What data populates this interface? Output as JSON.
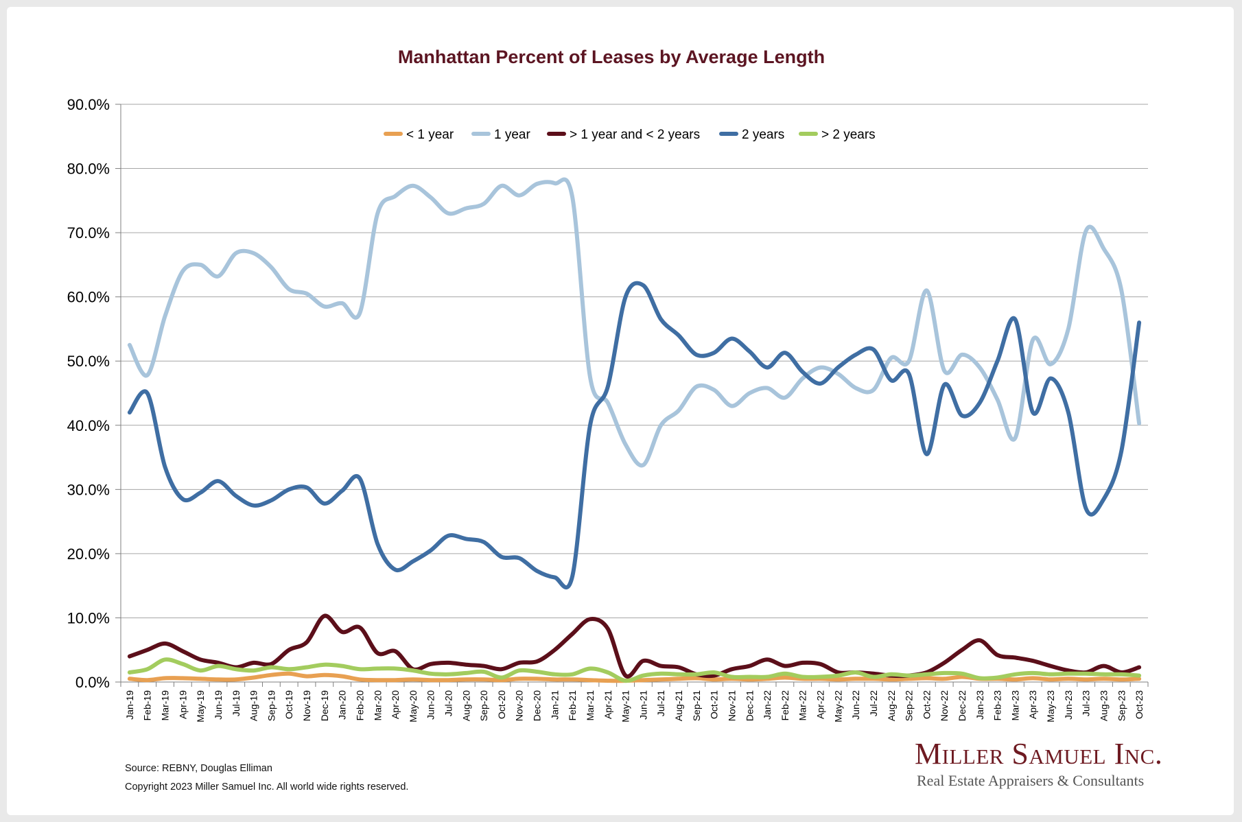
{
  "chart_data": {
    "type": "line",
    "title": "Manhattan Percent of Leases by Average Length",
    "xlabel": "",
    "ylabel": "",
    "ylim": [
      0,
      90
    ],
    "ytick_step": 10,
    "y_format": "percent_1dp",
    "grid": true,
    "legend_position": "top-center",
    "categories": [
      "Jan-19",
      "Feb-19",
      "Mar-19",
      "Apr-19",
      "May-19",
      "Jun-19",
      "Jul-19",
      "Aug-19",
      "Sep-19",
      "Oct-19",
      "Nov-19",
      "Dec-19",
      "Jan-20",
      "Feb-20",
      "Mar-20",
      "Apr-20",
      "May-20",
      "Jun-20",
      "Jul-20",
      "Aug-20",
      "Sep-20",
      "Oct-20",
      "Nov-20",
      "Dec-20",
      "Jan-21",
      "Feb-21",
      "Mar-21",
      "Apr-21",
      "May-21",
      "Jun-21",
      "Jul-21",
      "Aug-21",
      "Sep-21",
      "Oct-21",
      "Nov-21",
      "Dec-21",
      "Jan-22",
      "Feb-22",
      "Mar-22",
      "Apr-22",
      "May-22",
      "Jun-22",
      "Jul-22",
      "Aug-22",
      "Sep-22",
      "Oct-22",
      "Nov-22",
      "Dec-22",
      "Jan-23",
      "Feb-23",
      "Mar-23",
      "Apr-23",
      "May-23",
      "Jun-23",
      "Jul-23",
      "Aug-23",
      "Sep-23",
      "Oct-23"
    ],
    "series": [
      {
        "name": "< 1 year",
        "color": "#e8a052",
        "values": [
          0.5,
          0.3,
          0.6,
          0.6,
          0.5,
          0.4,
          0.4,
          0.7,
          1.1,
          1.3,
          0.9,
          1.1,
          0.9,
          0.4,
          0.3,
          0.3,
          0.4,
          0.3,
          0.3,
          0.4,
          0.4,
          0.3,
          0.5,
          0.5,
          0.4,
          0.4,
          0.3,
          0.2,
          0.2,
          0.3,
          0.4,
          0.5,
          0.6,
          0.4,
          0.5,
          0.4,
          0.5,
          0.7,
          0.5,
          0.5,
          0.4,
          0.5,
          0.5,
          0.4,
          0.5,
          0.6,
          0.5,
          0.8,
          0.5,
          0.5,
          0.4,
          0.6,
          0.4,
          0.5,
          0.4,
          0.5,
          0.4,
          0.5
        ]
      },
      {
        "name": "1 year",
        "color": "#a8c4db",
        "values": [
          52.5,
          47.8,
          57.0,
          64.0,
          65.0,
          63.2,
          66.8,
          66.8,
          64.6,
          61.2,
          60.5,
          58.5,
          59.0,
          57.5,
          73.0,
          75.7,
          77.3,
          75.5,
          73.0,
          73.8,
          74.5,
          77.3,
          75.8,
          77.6,
          77.7,
          75.5,
          47.5,
          43.5,
          37.0,
          33.8,
          40.0,
          42.3,
          46.0,
          45.5,
          43.0,
          45.0,
          45.8,
          44.3,
          47.3,
          49.0,
          48.0,
          45.8,
          45.5,
          50.5,
          50.0,
          61.0,
          48.5,
          51.0,
          49.0,
          44.0,
          38.0,
          53.3,
          49.5,
          55.0,
          70.3,
          67.5,
          61.0,
          40.3
        ]
      },
      {
        "name": "> 1 year and < 2 years",
        "color": "#5c0f1a",
        "values": [
          4.0,
          5.0,
          6.0,
          4.8,
          3.5,
          3.0,
          2.3,
          3.0,
          2.8,
          5.0,
          6.2,
          10.3,
          7.8,
          8.5,
          4.5,
          4.8,
          2.0,
          2.8,
          3.0,
          2.7,
          2.5,
          2.0,
          3.0,
          3.2,
          5.0,
          7.5,
          9.8,
          8.3,
          1.0,
          3.3,
          2.5,
          2.3,
          1.2,
          1.0,
          2.0,
          2.5,
          3.5,
          2.5,
          3.0,
          2.8,
          1.5,
          1.5,
          1.3,
          1.0,
          1.0,
          1.5,
          3.0,
          5.0,
          6.5,
          4.2,
          3.8,
          3.3,
          2.5,
          1.8,
          1.5,
          2.5,
          1.5,
          2.3
        ]
      },
      {
        "name": "2 years",
        "color": "#3f6ea3",
        "values": [
          42.0,
          45.0,
          33.5,
          28.5,
          29.5,
          31.3,
          29.0,
          27.5,
          28.3,
          30.0,
          30.3,
          27.8,
          29.8,
          31.7,
          21.5,
          17.5,
          18.8,
          20.5,
          22.8,
          22.3,
          21.8,
          19.5,
          19.3,
          17.3,
          16.3,
          16.5,
          40.0,
          46.0,
          60.0,
          61.8,
          56.5,
          54.0,
          51.0,
          51.3,
          53.5,
          51.5,
          49.0,
          51.3,
          48.3,
          46.5,
          49.0,
          51.0,
          51.8,
          47.0,
          48.0,
          35.5,
          46.3,
          41.5,
          43.5,
          50.0,
          56.5,
          42.0,
          47.3,
          42.0,
          27.0,
          28.5,
          36.0,
          56.0
        ]
      },
      {
        "name": "> 2 years",
        "color": "#a3cc5e",
        "values": [
          1.5,
          2.0,
          3.5,
          2.8,
          1.8,
          2.5,
          2.0,
          1.8,
          2.3,
          2.0,
          2.3,
          2.7,
          2.5,
          2.0,
          2.1,
          2.1,
          1.8,
          1.3,
          1.2,
          1.4,
          1.6,
          0.7,
          1.8,
          1.6,
          1.2,
          1.2,
          2.1,
          1.5,
          0.2,
          1.0,
          1.3,
          1.2,
          1.2,
          1.5,
          0.8,
          0.8,
          0.8,
          1.3,
          0.8,
          0.8,
          1.0,
          1.5,
          0.8,
          1.2,
          1.0,
          1.2,
          1.4,
          1.3,
          0.6,
          0.7,
          1.2,
          1.4,
          1.2,
          1.3,
          1.3,
          1.2,
          1.2,
          1.0
        ]
      }
    ]
  },
  "footer": {
    "source": "Source: REBNY, Douglas Elliman",
    "copyright": "Copyright 2023 Miller Samuel Inc.  All world wide rights reserved."
  },
  "logo": {
    "name": "Miller Samuel Inc.",
    "tagline": "Real Estate Appraisers & Consultants",
    "color": "#6e1a21"
  },
  "colors": {
    "title": "#5c1522",
    "grid": "#a6a6a6",
    "axis": "#7f7f7f",
    "text": "#000000"
  }
}
